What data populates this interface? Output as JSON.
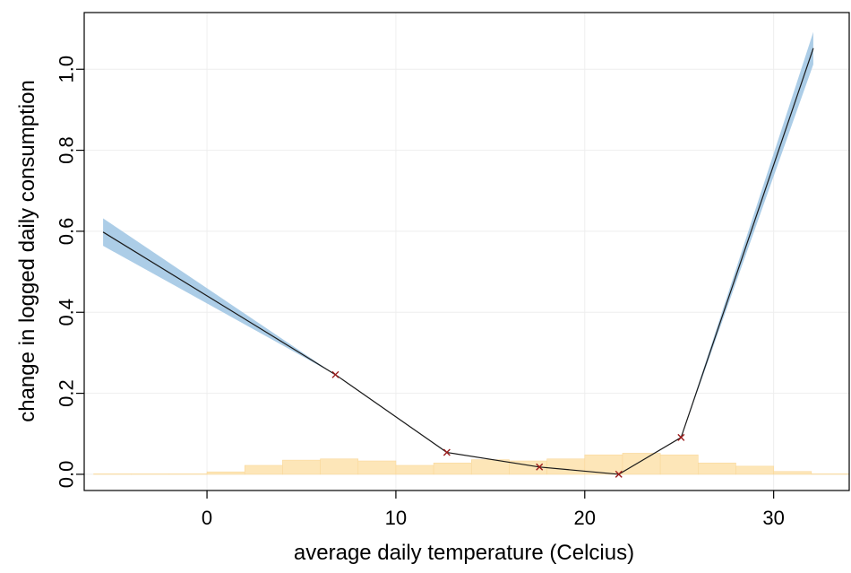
{
  "chart_data": {
    "type": "line",
    "title": "",
    "xlabel": "average daily temperature (Celcius)",
    "ylabel": "change in logged daily consumption",
    "xlim": [
      -6.5,
      34.0
    ],
    "ylim": [
      -0.04,
      1.14
    ],
    "x_ticks": [
      0,
      10,
      20,
      30
    ],
    "y_ticks": [
      0.0,
      0.2,
      0.4,
      0.6,
      0.8,
      1.0
    ],
    "x_tick_labels": [
      "0",
      "10",
      "20",
      "30"
    ],
    "y_tick_labels": [
      "0.0",
      "0.2",
      "0.4",
      "0.6",
      "0.8",
      "1.0"
    ],
    "grid": true,
    "colors": {
      "line": "#1a1a1a",
      "band": "#9ec4e3",
      "knot": "#9b1b1b",
      "hist": "#fde6b8",
      "hist_edge": "#f9d89a",
      "grid": "#eeeeee"
    },
    "series": [
      {
        "x": [
          -5.5,
          6.8,
          12.7,
          17.6,
          21.8,
          25.1,
          32.1
        ],
        "y": [
          0.598,
          0.246,
          0.054,
          0.018,
          0.0,
          0.091,
          1.052
        ],
        "ci_half": [
          0.034,
          0.0,
          0.0,
          0.0,
          0.0,
          0.0,
          0.04
        ]
      }
    ],
    "knots": {
      "x": [
        6.8,
        12.7,
        17.6,
        21.8,
        25.1
      ],
      "y": [
        0.246,
        0.054,
        0.018,
        0.0,
        0.091
      ]
    },
    "histogram": {
      "bin_edges": [
        -6,
        -4,
        -2,
        0,
        2,
        4,
        6,
        8,
        10,
        12,
        14,
        16,
        18,
        20,
        22,
        24,
        26,
        28,
        30,
        32,
        34
      ],
      "heights": [
        0.001,
        0.001,
        0.001,
        0.006,
        0.022,
        0.035,
        0.038,
        0.033,
        0.022,
        0.028,
        0.036,
        0.033,
        0.038,
        0.048,
        0.052,
        0.048,
        0.028,
        0.02,
        0.007,
        0.001
      ]
    }
  }
}
